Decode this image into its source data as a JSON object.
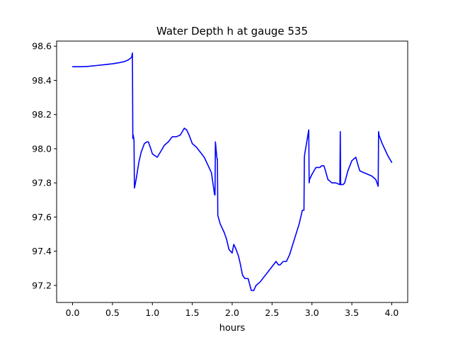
{
  "chart_data": {
    "type": "line",
    "title": "Water Depth h at gauge 535",
    "xlabel": "hours",
    "ylabel": "",
    "xlim": [
      -0.2,
      4.2
    ],
    "ylim": [
      97.1,
      98.63
    ],
    "xticks": [
      0.0,
      0.5,
      1.0,
      1.5,
      2.0,
      2.5,
      3.0,
      3.5,
      4.0
    ],
    "xtick_labels": [
      "0.0",
      "0.5",
      "1.0",
      "1.5",
      "2.0",
      "2.5",
      "3.0",
      "3.5",
      "4.0"
    ],
    "yticks": [
      97.2,
      97.4,
      97.6,
      97.8,
      98.0,
      98.2,
      98.4,
      98.6
    ],
    "ytick_labels": [
      "97.2",
      "97.4",
      "97.6",
      "97.8",
      "98.0",
      "98.2",
      "98.4",
      "98.6"
    ],
    "grid": false,
    "series": [
      {
        "color": "#0000ff",
        "x": [
          0.0,
          0.1,
          0.2,
          0.3,
          0.4,
          0.5,
          0.6,
          0.65,
          0.7,
          0.74,
          0.75,
          0.755,
          0.76,
          0.77,
          0.775,
          0.78,
          0.8,
          0.83,
          0.86,
          0.9,
          0.93,
          0.95,
          0.98,
          1.0,
          1.03,
          1.06,
          1.1,
          1.15,
          1.2,
          1.25,
          1.3,
          1.35,
          1.4,
          1.43,
          1.46,
          1.5,
          1.55,
          1.6,
          1.65,
          1.7,
          1.74,
          1.78,
          1.785,
          1.79,
          1.81,
          1.815,
          1.82,
          1.85,
          1.9,
          1.93,
          1.96,
          2.0,
          2.02,
          2.05,
          2.08,
          2.1,
          2.13,
          2.16,
          2.2,
          2.24,
          2.27,
          2.3,
          2.35,
          2.4,
          2.45,
          2.5,
          2.55,
          2.58,
          2.6,
          2.64,
          2.68,
          2.72,
          2.76,
          2.8,
          2.84,
          2.88,
          2.9,
          2.905,
          2.91,
          2.96,
          2.965,
          2.97,
          3.0,
          3.05,
          3.1,
          3.12,
          3.15,
          3.17,
          3.2,
          3.25,
          3.3,
          3.35,
          3.355,
          3.36,
          3.39,
          3.41,
          3.45,
          3.5,
          3.55,
          3.58,
          3.6,
          3.65,
          3.7,
          3.75,
          3.8,
          3.83,
          3.835,
          3.84,
          3.88,
          3.92,
          3.95,
          4.0
        ],
        "y": [
          98.48,
          98.48,
          98.482,
          98.487,
          98.492,
          98.497,
          98.505,
          98.51,
          98.52,
          98.535,
          98.56,
          98.06,
          98.08,
          98.05,
          97.77,
          97.78,
          97.83,
          97.92,
          97.98,
          98.03,
          98.04,
          98.04,
          98.0,
          97.97,
          97.96,
          97.95,
          97.98,
          98.02,
          98.04,
          98.07,
          98.07,
          98.08,
          98.12,
          98.11,
          98.08,
          98.03,
          98.01,
          97.98,
          97.95,
          97.9,
          97.86,
          97.73,
          97.73,
          98.04,
          97.94,
          97.94,
          97.61,
          97.56,
          97.51,
          97.47,
          97.41,
          97.39,
          97.44,
          97.41,
          97.37,
          97.33,
          97.26,
          97.24,
          97.24,
          97.17,
          97.17,
          97.2,
          97.22,
          97.25,
          97.28,
          97.31,
          97.34,
          97.32,
          97.32,
          97.34,
          97.34,
          97.38,
          97.44,
          97.5,
          97.56,
          97.64,
          97.64,
          97.95,
          97.97,
          98.11,
          97.8,
          97.82,
          97.85,
          97.89,
          97.89,
          97.9,
          97.9,
          97.87,
          97.82,
          97.8,
          97.8,
          97.79,
          98.1,
          97.79,
          97.79,
          97.8,
          97.87,
          97.93,
          97.95,
          97.9,
          97.87,
          97.86,
          97.85,
          97.84,
          97.82,
          97.78,
          98.1,
          98.08,
          98.03,
          97.99,
          97.96,
          97.92
        ]
      }
    ]
  }
}
